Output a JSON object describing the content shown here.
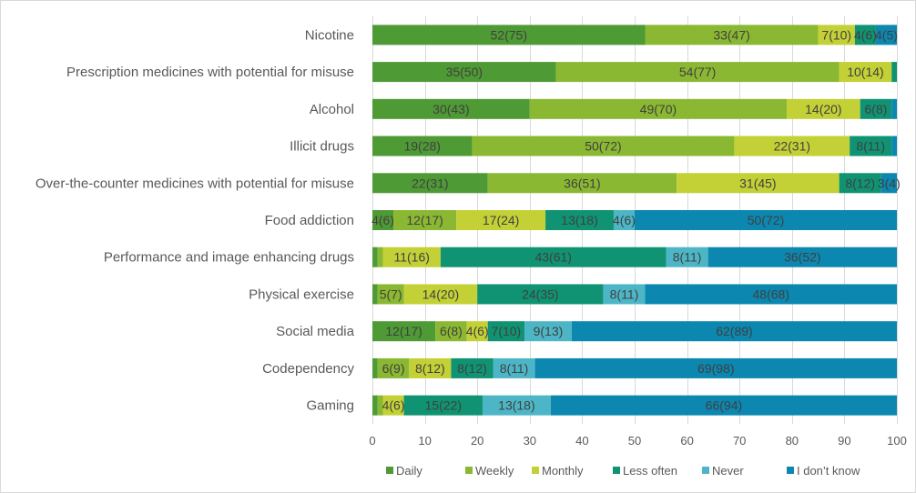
{
  "chart_data": {
    "type": "bar",
    "orientation": "horizontal",
    "stacked": true,
    "title": "",
    "xlabel": "",
    "ylabel": "",
    "xlim": [
      0,
      100
    ],
    "x_ticks": [
      0,
      10,
      20,
      30,
      40,
      50,
      60,
      70,
      80,
      90,
      100
    ],
    "grid": true,
    "legend_position": "bottom",
    "categories": [
      "Nicotine",
      "Prescription medicines with potential for misuse",
      "Alcohol",
      "Illicit drugs",
      "Over-the-counter medicines with potential for misuse",
      "Food addiction",
      "Performance and image enhancing drugs",
      "Physical exercise",
      "Social media",
      "Codependency",
      "Gaming"
    ],
    "series": [
      {
        "name": "Daily",
        "color": "#4e9a35",
        "values": [
          52,
          35,
          30,
          19,
          22,
          4,
          1,
          1,
          12,
          1,
          1
        ],
        "labels": [
          "52(75)",
          "35(50)",
          "30(43)",
          "19(28)",
          "22(31)",
          "4(6)",
          "",
          "",
          "12(17)",
          "",
          ""
        ]
      },
      {
        "name": "Weekly",
        "color": "#8bb832",
        "values": [
          33,
          54,
          49,
          50,
          36,
          12,
          1,
          5,
          6,
          6,
          1
        ],
        "labels": [
          "33(47)",
          "54(77)",
          "49(70)",
          "50(72)",
          "36(51)",
          "12(17)",
          "",
          "5(7)",
          "6(8)",
          "6(9)",
          ""
        ]
      },
      {
        "name": "Monthly",
        "color": "#c3d136",
        "values": [
          7,
          10,
          14,
          22,
          31,
          17,
          11,
          14,
          4,
          8,
          4
        ],
        "labels": [
          "7(10)",
          "10(14)",
          "14(20)",
          "22(31)",
          "31(45)",
          "17(24)",
          "11(16)",
          "14(20)",
          "4(6)",
          "8(12)",
          "4(6)"
        ]
      },
      {
        "name": "Less often",
        "color": "#0f9372",
        "values": [
          4,
          1,
          6,
          8,
          8,
          13,
          43,
          24,
          7,
          8,
          15
        ],
        "labels": [
          "4(6)",
          "",
          "6(8)",
          "8(11)",
          "8(12)",
          "13(18)",
          "43(61)",
          "24(35)",
          "7(10)",
          "8(12)",
          "15(22)"
        ]
      },
      {
        "name": "Never",
        "color": "#4db6c6",
        "values": [
          0,
          0,
          0,
          0,
          0,
          4,
          8,
          8,
          9,
          8,
          13
        ],
        "labels": [
          "",
          "",
          "",
          "",
          "",
          "4(6)",
          "8(11)",
          "8(11)",
          "9(13)",
          "8(11)",
          "13(18)"
        ]
      },
      {
        "name": "I don’t know",
        "color": "#0b87b0",
        "values": [
          4,
          0,
          1,
          1,
          3,
          50,
          36,
          48,
          62,
          69,
          66
        ],
        "labels": [
          "4(5)",
          "",
          "",
          "",
          "3(4)",
          "50(72)",
          "36(52)",
          "48(68)",
          "62(89)",
          "69(98)",
          "66(94)"
        ]
      }
    ]
  }
}
